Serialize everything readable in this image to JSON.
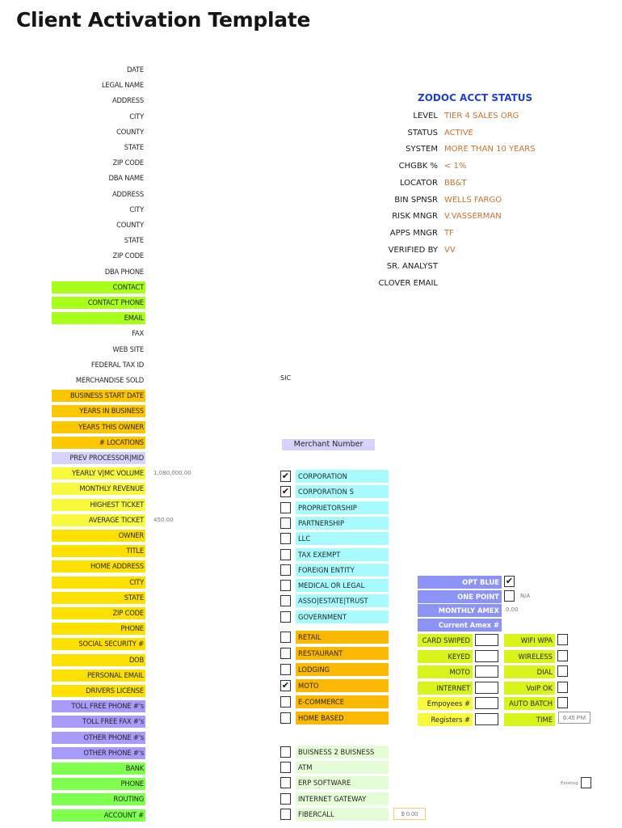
{
  "title": "Client Activation Template",
  "colors": {
    "green": "#a8ff1a",
    "orange": "#fcc600",
    "yellow": "#f8f83c",
    "gold": "#fde000",
    "lavender": "#d6d2fb",
    "purple": "#a99bfa",
    "bank_green": "#7fff4e",
    "cyan": "#a7fbfe",
    "amber": "#fbb800",
    "pale_green": "#e4fdd6",
    "blue": "#8c93f7",
    "lime": "#d8f41a",
    "status_value": "#c8732a",
    "status_header": "#1f3fd1"
  },
  "left_fields": [
    {
      "label": "DATE",
      "value": ""
    },
    {
      "label": "LEGAL NAME",
      "value": ""
    },
    {
      "label": "ADDRESS",
      "value": ""
    },
    {
      "label": "CITY",
      "value": ""
    },
    {
      "label": "COUNTY",
      "value": ""
    },
    {
      "label": "STATE",
      "value": ""
    },
    {
      "label": "ZIP CODE",
      "value": ""
    },
    {
      "label": "DBA NAME",
      "value": ""
    },
    {
      "label": "ADDRESS",
      "value": ""
    },
    {
      "label": "CITY",
      "value": ""
    },
    {
      "label": "COUNTY",
      "value": ""
    },
    {
      "label": "STATE",
      "value": ""
    },
    {
      "label": "ZIP CODE",
      "value": ""
    },
    {
      "label": "DBA PHONE",
      "value": ""
    },
    {
      "label": "CONTACT",
      "value": ""
    },
    {
      "label": "CONTACT PHONE",
      "value": ""
    },
    {
      "label": "EMAIL",
      "value": ""
    },
    {
      "label": "FAX",
      "value": ""
    },
    {
      "label": "WEB SITE",
      "value": ""
    },
    {
      "label": "FEDERAL TAX ID",
      "value": ""
    },
    {
      "label": "MERCHANDISE SOLD",
      "value": ""
    },
    {
      "label": "BUSINESS START DATE",
      "value": ""
    },
    {
      "label": "YEARS IN BUSINESS",
      "value": ""
    },
    {
      "label": "YEARS THIS OWNER",
      "value": ""
    },
    {
      "label": "# LOCATIONS",
      "value": ""
    },
    {
      "label": "PREV PROCESSOR|MID",
      "value": ""
    },
    {
      "label": "YEARLY V|MC VOLUME",
      "value": "1,080,000.00"
    },
    {
      "label": "MONTHLY REVENUE",
      "value": ""
    },
    {
      "label": "HIGHEST TICKET",
      "value": ""
    },
    {
      "label": "AVERAGE TICKET",
      "value": "450.00"
    },
    {
      "label": "OWNER",
      "value": ""
    },
    {
      "label": "TITLE",
      "value": ""
    },
    {
      "label": "HOME ADDRESS",
      "value": ""
    },
    {
      "label": "CITY",
      "value": ""
    },
    {
      "label": "STATE",
      "value": ""
    },
    {
      "label": "ZIP CODE",
      "value": ""
    },
    {
      "label": "PHONE",
      "value": ""
    },
    {
      "label": "SOCIAL SECURITY #",
      "value": ""
    },
    {
      "label": "DOB",
      "value": ""
    },
    {
      "label": "PERSONAL EMAIL",
      "value": ""
    },
    {
      "label": "DRIVERS LICENSE",
      "value": ""
    },
    {
      "label": "TOLL FREE PHONE #'s",
      "value": ""
    },
    {
      "label": "TOLL FREE FAX #'s",
      "value": ""
    },
    {
      "label": "OTHER PHONE #'s",
      "value": ""
    },
    {
      "label": "OTHER PHONE #'s",
      "value": ""
    },
    {
      "label": "BANK",
      "value": ""
    },
    {
      "label": "PHONE",
      "value": ""
    },
    {
      "label": "ROUTING",
      "value": ""
    },
    {
      "label": "ACCOUNT #",
      "value": ""
    }
  ],
  "status": {
    "header": "ZODOC ACCT STATUS",
    "rows": [
      {
        "label": "LEVEL",
        "value": "TIER 4 SALES ORG"
      },
      {
        "label": "STATUS",
        "value": "ACTIVE"
      },
      {
        "label": "SYSTEM",
        "value": "MORE THAN 10 YEARS"
      },
      {
        "label": "CHGBK %",
        "value": "< 1%"
      },
      {
        "label": "LOCATOR",
        "value": "BB&T"
      },
      {
        "label": "BIN SPNSR",
        "value": "WELLS FARGO"
      },
      {
        "label": "RISK MNGR",
        "value": "V.VASSERMAN"
      },
      {
        "label": "APPS MNGR",
        "value": "TF"
      },
      {
        "label": "VERIFIED BY",
        "value": "VV"
      },
      {
        "label": "SR. ANALYST",
        "value": ""
      },
      {
        "label": "CLOVER EMAIL",
        "value": ""
      }
    ]
  },
  "sic_label": "SIC",
  "merchant_number_label": "Merchant Number",
  "entity_types": [
    {
      "label": "CORPORATION",
      "checked": "✔"
    },
    {
      "label": "CORPORATION S",
      "checked": "✔"
    },
    {
      "label": "PROPRIETORSHIP",
      "checked": ""
    },
    {
      "label": "PARTNERSHIP",
      "checked": ""
    },
    {
      "label": "LLC",
      "checked": ""
    },
    {
      "label": "TAX EXEMPT",
      "checked": ""
    },
    {
      "label": "FOREIGN ENTITY",
      "checked": ""
    },
    {
      "label": "MEDICAL OR LEGAL",
      "checked": ""
    },
    {
      "label": "ASSO|ESTATE|TRUST",
      "checked": ""
    },
    {
      "label": "GOVERNMENT",
      "checked": ""
    }
  ],
  "business_types": [
    {
      "label": "RETAIL",
      "checked": ""
    },
    {
      "label": "RESTAURANT",
      "checked": ""
    },
    {
      "label": "LODGING",
      "checked": ""
    },
    {
      "label": "MOTO",
      "checked": "✔"
    },
    {
      "label": "E-COMMERCE",
      "checked": ""
    },
    {
      "label": "HOME BASED",
      "checked": ""
    }
  ],
  "extra_types": [
    {
      "label": "BUISNESS 2 BUISNESS",
      "checked": ""
    },
    {
      "label": "ATM",
      "checked": ""
    },
    {
      "label": "ERP SOFTWARE",
      "checked": ""
    },
    {
      "label": "INTERNET GATEWAY",
      "checked": ""
    },
    {
      "label": "FIBERCALL",
      "checked": ""
    }
  ],
  "fibercall_amount": "$ 0.00",
  "amex": {
    "opt_blue": {
      "label": "OPT BLUE",
      "checked": "✔"
    },
    "one_point": {
      "label": "ONE POINT",
      "checked": "",
      "note": "N/A"
    },
    "monthly_amex": {
      "label": "MONTHLY AMEX",
      "value": "0.00"
    },
    "current_amex": {
      "label": "Current Amex #"
    }
  },
  "processing": [
    {
      "label": "CARD SWIPED",
      "value": ""
    },
    {
      "label": "KEYED",
      "value": ""
    },
    {
      "label": "MOTO",
      "value": ""
    },
    {
      "label": "INTERNET",
      "value": ""
    },
    {
      "label": "Empoyees #",
      "value": ""
    },
    {
      "label": "Registers #",
      "value": ""
    }
  ],
  "connectivity": [
    {
      "label": "WIFI WPA",
      "checked": ""
    },
    {
      "label": "WIRELESS",
      "checked": ""
    },
    {
      "label": "DIAL",
      "checked": ""
    },
    {
      "label": "VoIP OK",
      "checked": ""
    },
    {
      "label": "AUTO BATCH",
      "checked": ""
    },
    {
      "label": "TIME",
      "value": "6:45 PM"
    }
  ],
  "existing": {
    "label": "Existing",
    "checked": ""
  }
}
